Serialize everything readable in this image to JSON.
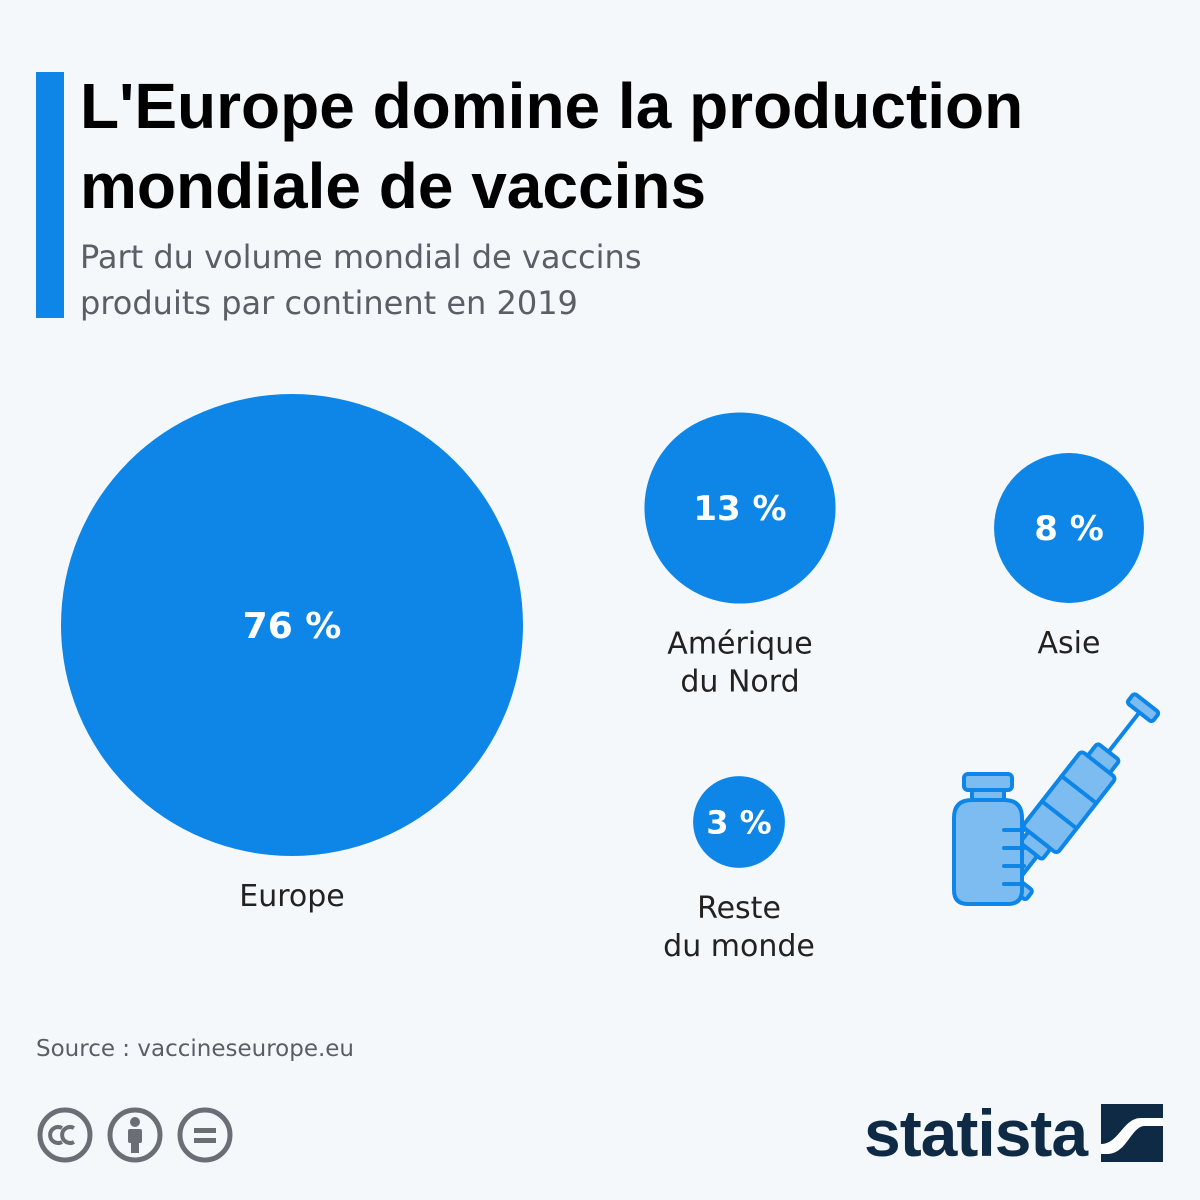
{
  "header": {
    "title_line1": "L'Europe domine la production",
    "title_line2": "mondiale de vaccins",
    "subtitle_line1": "Part du volume mondial de vaccins",
    "subtitle_line2": "produits par continent en 2019"
  },
  "colors": {
    "accent": "#0d86e8",
    "bubble": "#0d86e8",
    "illustration": "#7cbcf0",
    "logo": "#0f2a44"
  },
  "chart_data": {
    "type": "bubble",
    "title": "L'Europe domine la production mondiale de vaccins",
    "subtitle": "Part du volume mondial de vaccins produits par continent en 2019",
    "unit": "%",
    "items": [
      {
        "category": [
          "Europe"
        ],
        "value": 76,
        "label": "76 %"
      },
      {
        "category": [
          "Amérique",
          "du Nord"
        ],
        "value": 13,
        "label": "13 %"
      },
      {
        "category": [
          "Asie"
        ],
        "value": 8,
        "label": "8 %"
      },
      {
        "category": [
          "Reste",
          "du monde"
        ],
        "value": 3,
        "label": "3 %"
      }
    ]
  },
  "illustration": {
    "icon": "vaccine-vial-syringe-icon"
  },
  "footer": {
    "source": "Source : vaccineseurope.eu",
    "license_icons": [
      "cc-icon",
      "attribution-icon",
      "no-derivatives-icon"
    ],
    "logo_text": "statista"
  }
}
